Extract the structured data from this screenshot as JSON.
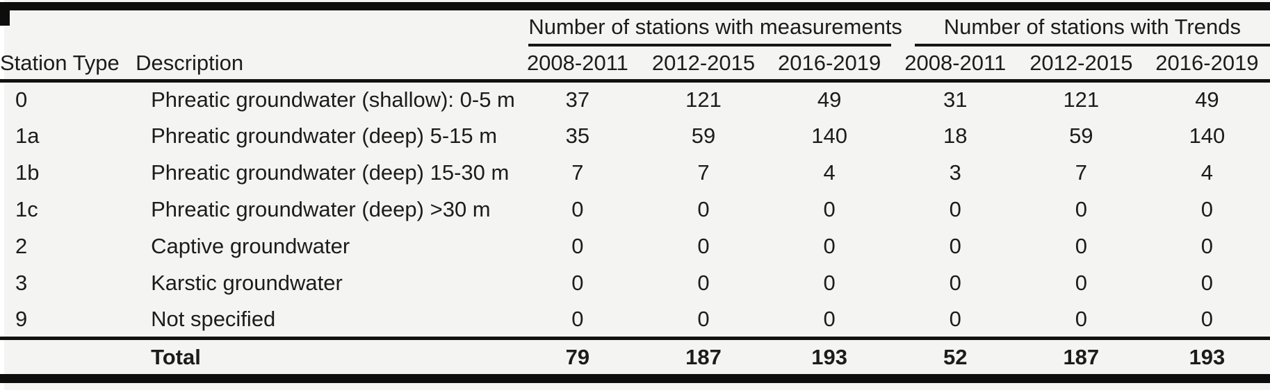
{
  "table": {
    "column_headers": {
      "station_type": "Station Type",
      "description": "Description"
    },
    "groups": [
      {
        "label": "Number of stations with measurements",
        "periods": [
          "2008-2011",
          "2012-2015",
          "2016-2019"
        ]
      },
      {
        "label": "Number of stations with Trends",
        "periods": [
          "2008-2011",
          "2012-2015",
          "2016-2019"
        ]
      }
    ],
    "rows": [
      {
        "station_type": "0",
        "description": "Phreatic groundwater (shallow): 0-5 m",
        "measurements": [
          "37",
          "121",
          "49"
        ],
        "trends": [
          "31",
          "121",
          "49"
        ]
      },
      {
        "station_type": "1a",
        "description": "Phreatic groundwater (deep) 5-15 m",
        "measurements": [
          "35",
          "59",
          "140"
        ],
        "trends": [
          "18",
          "59",
          "140"
        ]
      },
      {
        "station_type": "1b",
        "description": "Phreatic groundwater (deep) 15-30 m",
        "measurements": [
          "7",
          "7",
          "4"
        ],
        "trends": [
          "3",
          "7",
          "4"
        ]
      },
      {
        "station_type": "1c",
        "description": "Phreatic groundwater (deep) >30 m",
        "measurements": [
          "0",
          "0",
          "0"
        ],
        "trends": [
          "0",
          "0",
          "0"
        ]
      },
      {
        "station_type": "2",
        "description": "Captive groundwater",
        "measurements": [
          "0",
          "0",
          "0"
        ],
        "trends": [
          "0",
          "0",
          "0"
        ]
      },
      {
        "station_type": "3",
        "description": "Karstic groundwater",
        "measurements": [
          "0",
          "0",
          "0"
        ],
        "trends": [
          "0",
          "0",
          "0"
        ]
      },
      {
        "station_type": "9",
        "description": "Not specified",
        "measurements": [
          "0",
          "0",
          "0"
        ],
        "trends": [
          "0",
          "0",
          "0"
        ]
      }
    ],
    "total": {
      "label": "Total",
      "measurements": [
        "79",
        "187",
        "193"
      ],
      "trends": [
        "52",
        "187",
        "193"
      ]
    },
    "colors": {
      "background": "#f4f4f2",
      "text": "#1c1c1c",
      "rule": "#0d0d0d"
    }
  }
}
